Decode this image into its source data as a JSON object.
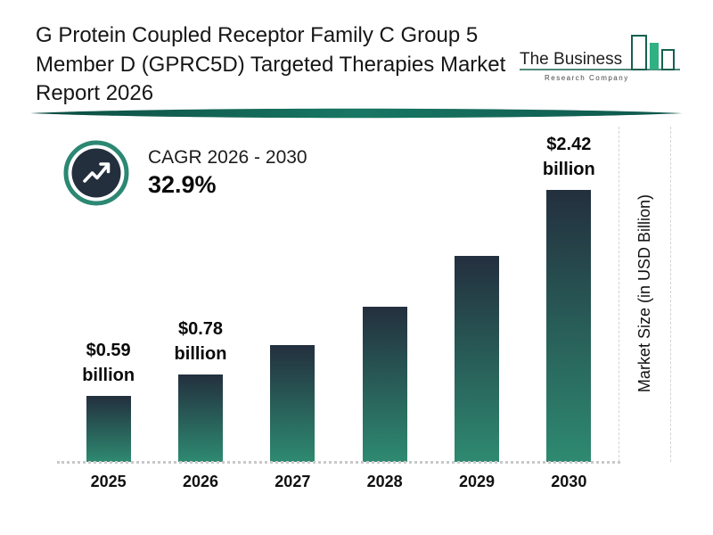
{
  "header": {
    "title": "G Protein Coupled Receptor Family C Group 5 Member D (GPRC5D) Targeted Therapies Market Report 2026",
    "logo": {
      "name_line": "The Business",
      "sub_line": "Research Company"
    }
  },
  "cagr": {
    "label": "CAGR 2026 - 2030",
    "value": "32.9%"
  },
  "chart_data": {
    "type": "bar",
    "title": "G Protein Coupled Receptor Family C Group 5 Member D (GPRC5D) Targeted Therapies Market Report 2026",
    "categories": [
      "2025",
      "2026",
      "2027",
      "2028",
      "2029",
      "2030"
    ],
    "values": [
      0.59,
      0.78,
      1.04,
      1.38,
      1.83,
      2.42
    ],
    "bar_labels": [
      {
        "index": 0,
        "lines": [
          "$0.59",
          "billion"
        ]
      },
      {
        "index": 1,
        "lines": [
          "$0.78",
          "billion"
        ]
      },
      {
        "index": 5,
        "lines": [
          "$2.42",
          "billion"
        ]
      }
    ],
    "xlabel": "",
    "ylabel": "Market Size (in USD Billion)",
    "ylim": [
      0,
      2.6
    ],
    "grid": false,
    "legend": "none",
    "bar_color_top": "#232f3e",
    "bar_color_bottom": "#2e8a71",
    "accent_color": "#16604f",
    "logo_green": "#2fb183",
    "baseline_style": "dotted"
  }
}
